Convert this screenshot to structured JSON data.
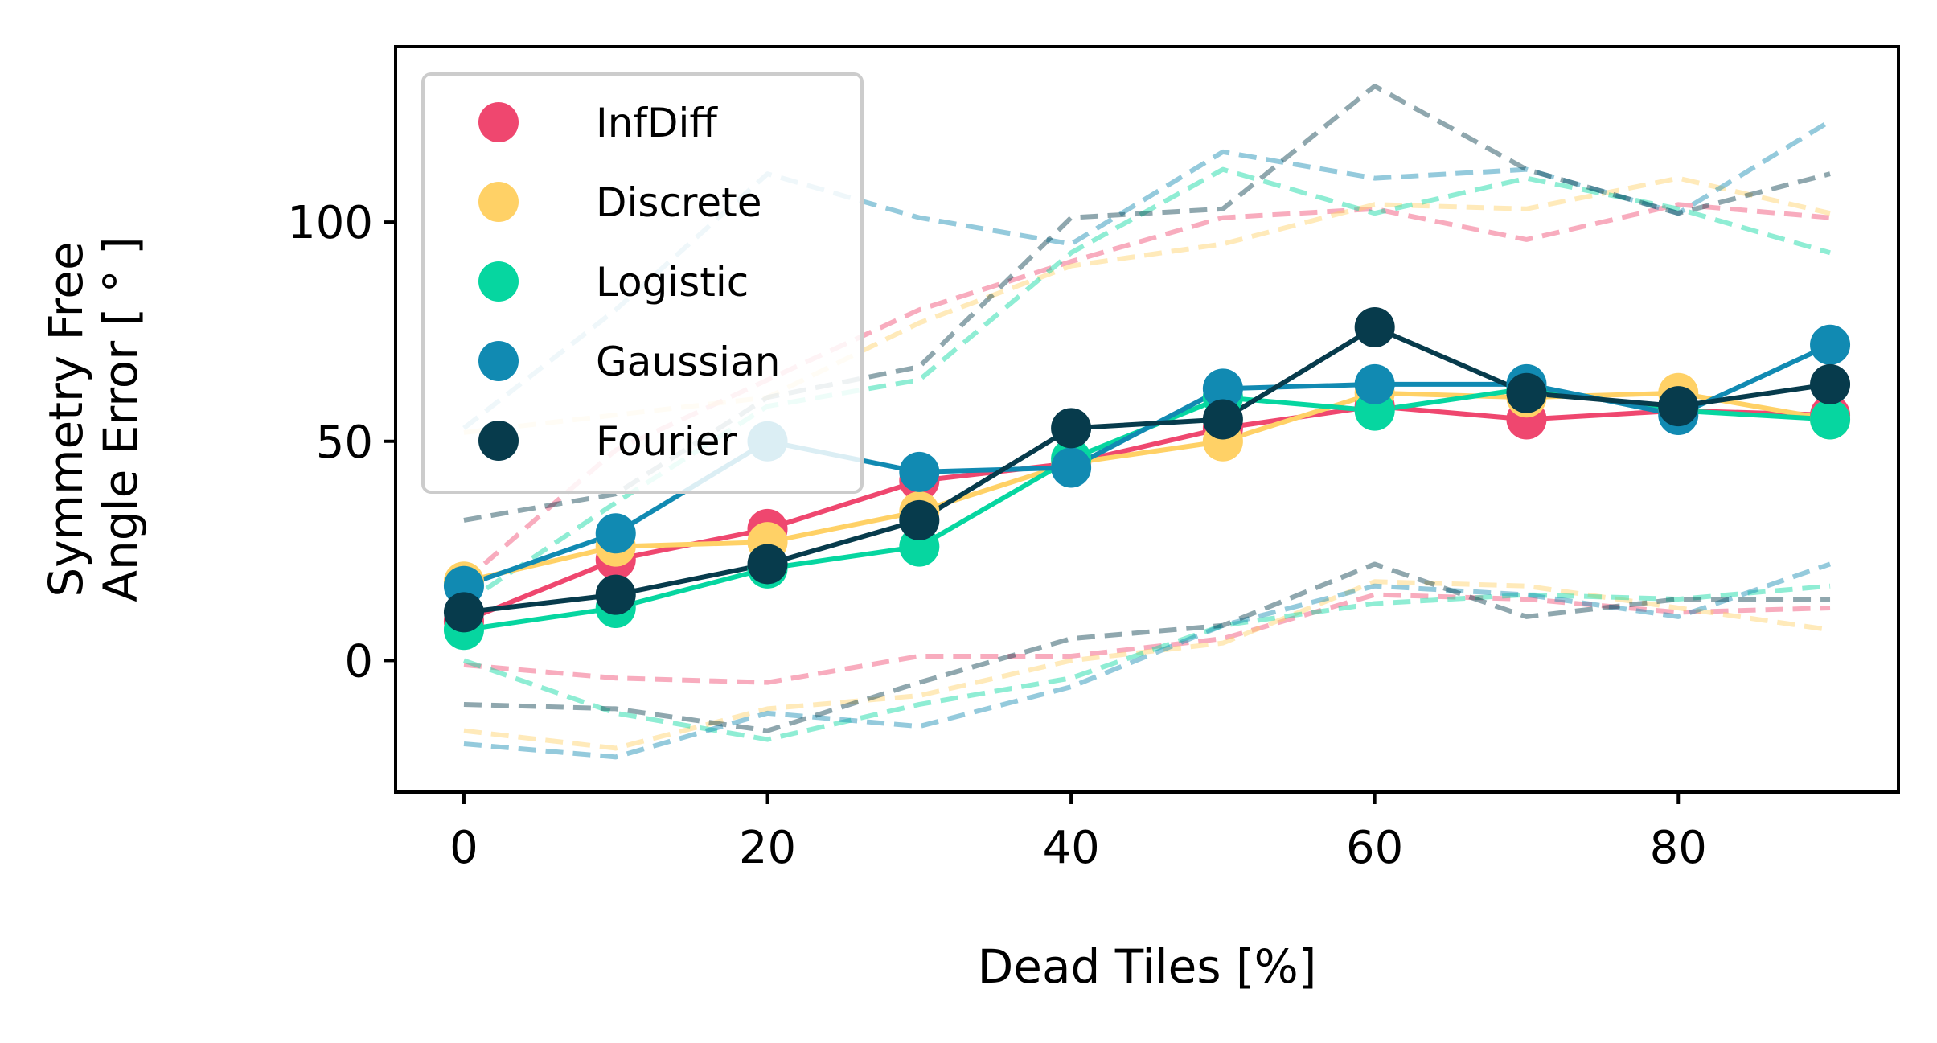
{
  "chart_data": {
    "type": "line",
    "xlabel": "Dead Tiles [%]",
    "ylabel_lines": [
      "Symmetry Free",
      "Angle Error [ ° ]"
    ],
    "xlim": [
      -4.5,
      94.5
    ],
    "ylim": [
      -30,
      140
    ],
    "xticks": [
      0,
      20,
      40,
      60,
      80
    ],
    "yticks": [
      0,
      50,
      100
    ],
    "grid": false,
    "legend_position": "top-left",
    "x": [
      0,
      10,
      20,
      30,
      40,
      50,
      60,
      70,
      80,
      90
    ],
    "series": [
      {
        "name": "InfDiff",
        "color": "#ef476f",
        "values": [
          9,
          23,
          30,
          41,
          45,
          53,
          58,
          55,
          57,
          56
        ],
        "upper": [
          18,
          48,
          64,
          80,
          91,
          101,
          103,
          96,
          104,
          101
        ],
        "lower": [
          -1,
          -4,
          -5,
          1,
          1,
          5,
          15,
          14,
          11,
          12
        ]
      },
      {
        "name": "Discrete",
        "color": "#ffd166",
        "values": [
          18,
          26,
          27,
          34,
          45,
          50,
          61,
          60,
          61,
          55
        ],
        "upper": [
          52,
          56,
          60,
          77,
          90,
          95,
          104,
          103,
          110,
          102
        ],
        "lower": [
          -16,
          -20,
          -11,
          -8,
          0,
          4,
          18,
          17,
          12,
          7
        ]
      },
      {
        "name": "Logistic",
        "color": "#06d6a0",
        "values": [
          7,
          12,
          21,
          26,
          46,
          60,
          57,
          62,
          57,
          55
        ],
        "upper": [
          13,
          36,
          58,
          64,
          93,
          112,
          102,
          110,
          103,
          93
        ],
        "lower": [
          0,
          -12,
          -18,
          -10,
          -4,
          8,
          13,
          15,
          14,
          17
        ]
      },
      {
        "name": "Gaussian",
        "color": "#118ab2",
        "values": [
          17,
          29,
          50,
          43,
          44,
          62,
          63,
          63,
          56,
          72
        ],
        "upper": [
          53,
          80,
          111,
          101,
          95,
          116,
          110,
          112,
          102,
          123
        ],
        "lower": [
          -19,
          -22,
          -12,
          -15,
          -6,
          8,
          17,
          15,
          10,
          22
        ]
      },
      {
        "name": "Fourier",
        "color": "#073b4c",
        "values": [
          11,
          15,
          22,
          32,
          53,
          55,
          76,
          61,
          58,
          63
        ],
        "upper": [
          32,
          38,
          60,
          67,
          101,
          103,
          131,
          112,
          102,
          111
        ],
        "lower": [
          -10,
          -11,
          -16,
          -5,
          5,
          8,
          22,
          10,
          14,
          14
        ]
      }
    ]
  }
}
